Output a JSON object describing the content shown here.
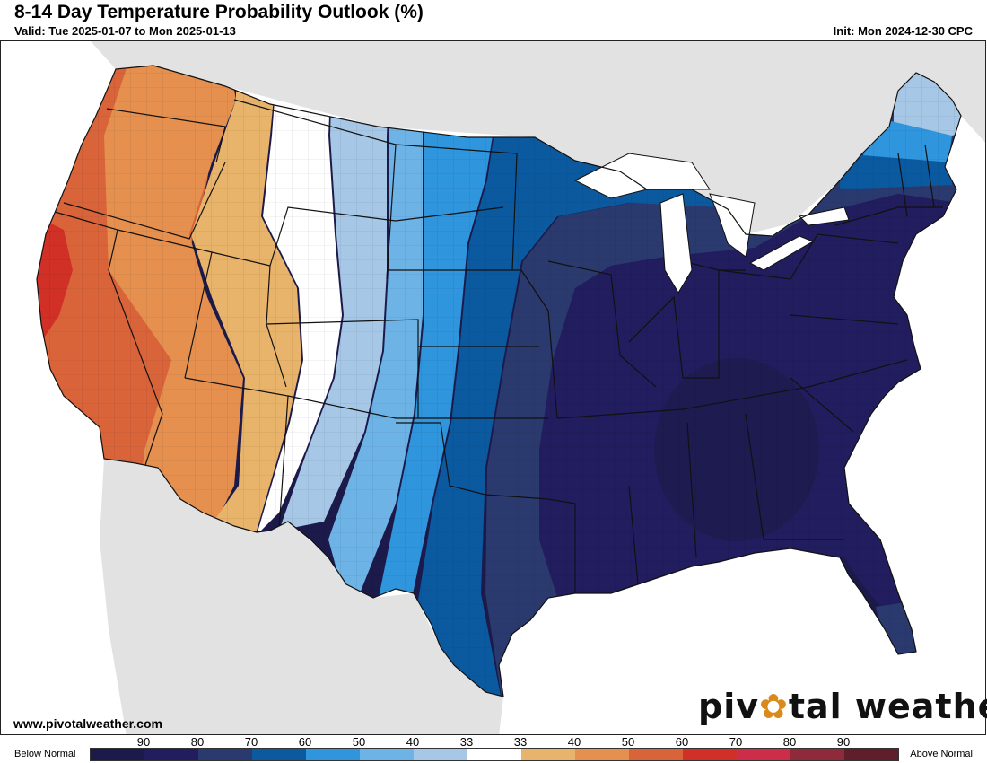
{
  "header": {
    "title": "8-14 Day Temperature Probability Outlook (%)",
    "valid": "Valid: Tue 2025-01-07 to Mon 2025-01-13",
    "init": "Init: Mon 2024-12-30 CPC"
  },
  "footer": {
    "website": "www.pivotalweather.com",
    "brand_prefix": "piv",
    "brand_gear": "✿",
    "brand_suffix": "tal weather"
  },
  "legend": {
    "below_label": "Below Normal",
    "above_label": "Above Normal",
    "colors": [
      "#1c1a4a",
      "#221d5e",
      "#2b3a6e",
      "#0b5aa0",
      "#2f95dd",
      "#6eb3e6",
      "#a6c7e6",
      "#ffffff",
      "#e8b36a",
      "#e5904f",
      "#d9643a",
      "#d03025",
      "#cc2e4a",
      "#8f2a3a",
      "#5e1f2a"
    ],
    "ticks": [
      "90",
      "80",
      "70",
      "60",
      "50",
      "40",
      "33",
      "33",
      "40",
      "50",
      "60",
      "70",
      "80",
      "90"
    ]
  },
  "map": {
    "land_color": "#e2e2e2",
    "water_color": "#ffffff",
    "regions": [
      {
        "name": "west-coast-above-60",
        "category": "Above Normal 60",
        "color": "#d9643a"
      },
      {
        "name": "california-above-70",
        "category": "Above Normal 70",
        "color": "#d03025"
      },
      {
        "name": "great-basin-above-50",
        "category": "Above Normal 50",
        "color": "#e5904f"
      },
      {
        "name": "rockies-above-40",
        "category": "Above Normal 40",
        "color": "#e8b36a"
      },
      {
        "name": "plains-below-40",
        "category": "Below Normal 40",
        "color": "#a6c7e6"
      },
      {
        "name": "plains-below-50",
        "category": "Below Normal 50",
        "color": "#6eb3e6"
      },
      {
        "name": "central-below-60",
        "category": "Below Normal 60",
        "color": "#2f95dd"
      },
      {
        "name": "midwest-below-70",
        "category": "Below Normal 70",
        "color": "#0b5aa0"
      },
      {
        "name": "east-below-80",
        "category": "Below Normal 80",
        "color": "#2b3a6e"
      },
      {
        "name": "east-below-90",
        "category": "Below Normal 90",
        "color": "#221d5e"
      },
      {
        "name": "southeast-below-90-core",
        "category": "Below Normal 90",
        "color": "#1c1a4a"
      }
    ]
  }
}
